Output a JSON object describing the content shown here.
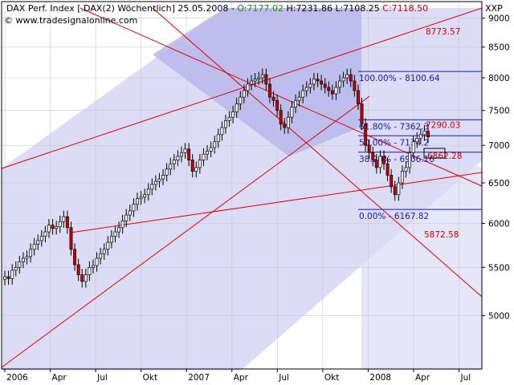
{
  "header": {
    "title": "DAX Perf. Index [.DAX(2)  Wöchentlich] 25.05.2008 - ",
    "open": "O:7177.02",
    "high": "H:7231.86",
    "low": "L:7108.25",
    "close": "C:7118.50",
    "copyright": "© www.tradesignalonline.com",
    "symbol": "XXP"
  },
  "colors": {
    "band": "#d8d8f5",
    "band_dark": "#b8b8ee",
    "channel_line": "#dd0000",
    "fib_line": "#1a1aa0",
    "candle_up": "#ffffff",
    "candle_down": "#cc0000"
  },
  "chart_data": {
    "type": "candlestick",
    "title": "DAX Perf. Index [.DAX(2) Wöchentlich]",
    "y_ticks": [
      "9000",
      "8500",
      "8000",
      "7500",
      "7000",
      "6500",
      "6000",
      "5500",
      "5000"
    ],
    "y_tick_values": [
      9000,
      8500,
      8000,
      7500,
      7000,
      6500,
      6000,
      5500,
      5000
    ],
    "ylim": [
      4500,
      9300
    ],
    "x_ticks": [
      "2006",
      "Apr",
      "Jul",
      "Okt",
      "2007",
      "Apr",
      "Jul",
      "Okt",
      "2008",
      "Apr",
      "Jul"
    ],
    "x_tick_values": [
      "2006-01",
      "2006-04",
      "2006-07",
      "2006-10",
      "2007-01",
      "2007-04",
      "2007-07",
      "2007-10",
      "2008-01",
      "2008-04",
      "2008-07"
    ],
    "fib_levels": [
      {
        "label": "100.00% - 8100.64",
        "value": 8100.64
      },
      {
        "label": "61.80% - 7362.3",
        "value": 7362.3
      },
      {
        "label": "50.00% - 7134.2",
        "value": 7134.2
      },
      {
        "label": "38.20% - 6906.16",
        "value": 6906.16
      },
      {
        "label": "0.00% - 6167.82",
        "value": 6167.82
      }
    ],
    "annotations": [
      {
        "label": "8773.57",
        "value": 8773.57
      },
      {
        "label": "7290.03",
        "value": 7290.03
      },
      {
        "label": "6862.28",
        "value": 6862.28
      },
      {
        "label": "5872.58",
        "value": 5872.58
      }
    ],
    "closes": [
      5400,
      5380,
      5470,
      5500,
      5560,
      5600,
      5620,
      5700,
      5760,
      5800,
      5850,
      5900,
      5980,
      5940,
      5960,
      6020,
      6080,
      5950,
      5700,
      5530,
      5420,
      5350,
      5420,
      5500,
      5520,
      5600,
      5650,
      5700,
      5780,
      5850,
      5900,
      5950,
      6030,
      6100,
      6150,
      6230,
      6300,
      6320,
      6350,
      6420,
      6480,
      6520,
      6550,
      6600,
      6680,
      6750,
      6800,
      6850,
      6900,
      6950,
      6800,
      6650,
      6700,
      6800,
      6880,
      6920,
      6970,
      7050,
      7150,
      7250,
      7350,
      7400,
      7480,
      7600,
      7700,
      7800,
      7900,
      7950,
      7980,
      8000,
      8050,
      7900,
      7700,
      7650,
      7500,
      7300,
      7250,
      7400,
      7550,
      7650,
      7700,
      7800,
      7850,
      7900,
      7980,
      7950,
      7900,
      7850,
      7800,
      7750,
      7850,
      7950,
      8000,
      8050,
      7950,
      7800,
      7600,
      7300,
      7000,
      6900,
      6800,
      6700,
      6850,
      6750,
      6600,
      6450,
      6350,
      6500,
      6650,
      6700,
      6900,
      7050,
      7100,
      7150,
      7200,
      7119
    ]
  }
}
